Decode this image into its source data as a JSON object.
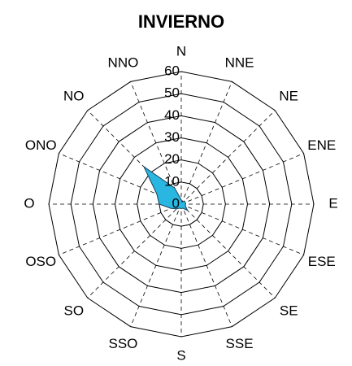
{
  "chart_data": {
    "type": "radar",
    "title": "INVIERNO",
    "categories": [
      "N",
      "NNE",
      "NE",
      "ENE",
      "E",
      "ESE",
      "SE",
      "SSE",
      "S",
      "SSO",
      "SO",
      "OSO",
      "O",
      "ONO",
      "NO",
      "NNO"
    ],
    "values": [
      2,
      1,
      2,
      2,
      2,
      2,
      4,
      2,
      2,
      2,
      3,
      5,
      10,
      12,
      24,
      8
    ],
    "color": "#29b6e0",
    "ylim": [
      0,
      60
    ],
    "yticks": [
      0,
      10,
      20,
      30,
      40,
      50,
      60
    ],
    "grid": true
  }
}
